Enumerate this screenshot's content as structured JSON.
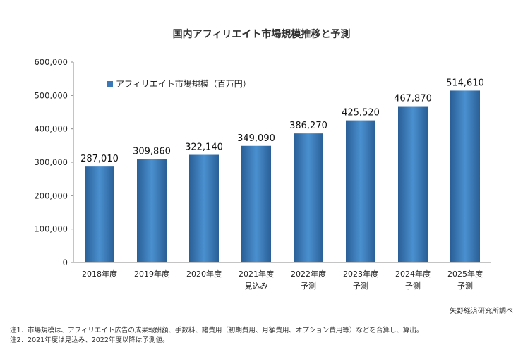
{
  "chart_data": {
    "type": "bar",
    "title": "国内アフィリエイト市場規模推移と予測",
    "categories": [
      [
        "2018年度"
      ],
      [
        "2019年度"
      ],
      [
        "2020年度"
      ],
      [
        "2021年度",
        "見込み"
      ],
      [
        "2022年度",
        "予測"
      ],
      [
        "2023年度",
        "予測"
      ],
      [
        "2024年度",
        "予測"
      ],
      [
        "2025年度",
        "予測"
      ]
    ],
    "series": [
      {
        "name": "アフィリエイト市場規模（百万円）",
        "values": [
          287010,
          309860,
          322140,
          349090,
          386270,
          425520,
          467870,
          514610
        ],
        "value_labels": [
          "287,010",
          "309,860",
          "322,140",
          "349,090",
          "386,270",
          "425,520",
          "467,870",
          "514,610"
        ]
      }
    ],
    "ylim": [
      0,
      600000
    ],
    "yticks": [
      0,
      100000,
      200000,
      300000,
      400000,
      500000,
      600000
    ],
    "ytick_labels": [
      "0",
      "100,000",
      "200,000",
      "300,000",
      "400,000",
      "500,000",
      "600,000"
    ],
    "grid": false,
    "legend_position": "top-left",
    "colors": {
      "bar_edge": "#2a5f96",
      "bar_mid": "#4a90d0",
      "axis": "#888888"
    }
  },
  "source": "矢野経済研究所調べ",
  "notes": [
    "注1．市場規模は、アフィリエイト広告の成果報酬額、手数料、諸費用（初期費用、月額費用、オプション費用等）などを合算し、算出。",
    "注2．2021年度は見込み、2022年度以降は予測値。"
  ]
}
